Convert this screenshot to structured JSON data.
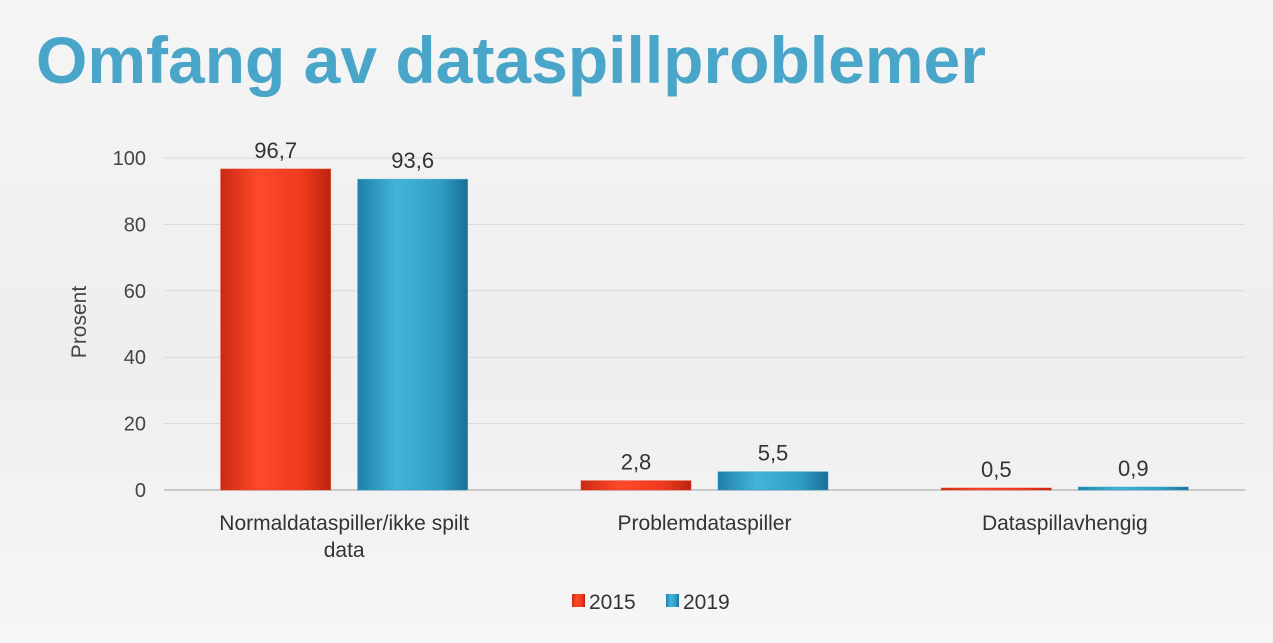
{
  "slide": {
    "title": "Omfang av dataspillproblemer"
  },
  "chart_data": {
    "type": "bar",
    "ylabel": "Prosent",
    "xlabel": "",
    "ylim": [
      0,
      100
    ],
    "yticks": [
      0,
      20,
      40,
      60,
      80,
      100
    ],
    "grid": true,
    "legend_position": "bottom",
    "categories": [
      [
        "Normaldataspiller/ikke spilt",
        "data"
      ],
      [
        "Problemdataspiller"
      ],
      [
        "Dataspillavhengig"
      ]
    ],
    "series": [
      {
        "name": "2015",
        "values": [
          96.7,
          2.8,
          0.5
        ],
        "labels": [
          "96,7",
          "2,8",
          "0,5"
        ],
        "color": "#e8341c"
      },
      {
        "name": "2019",
        "values": [
          93.6,
          5.5,
          0.9
        ],
        "labels": [
          "93,6",
          "5,5",
          "0,9"
        ],
        "color": "#2e9cc6"
      }
    ]
  }
}
